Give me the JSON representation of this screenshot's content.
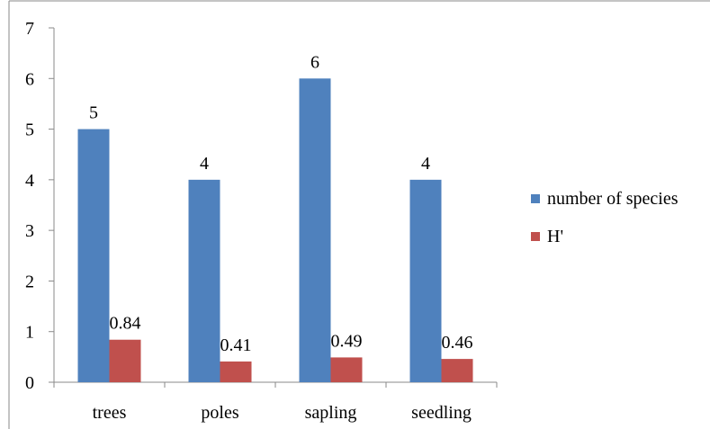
{
  "chart_data": {
    "type": "bar",
    "title": "",
    "xlabel": "",
    "ylabel": "",
    "categories": [
      "trees",
      "poles",
      "sapling",
      "seedling"
    ],
    "series": [
      {
        "name": "number of species",
        "values": [
          5,
          4,
          6,
          4
        ],
        "labels": [
          "5",
          "4",
          "6",
          "4"
        ],
        "color": "#4f81bd"
      },
      {
        "name": "H'",
        "values": [
          0.84,
          0.41,
          0.49,
          0.46
        ],
        "labels": [
          "0.84",
          "0.41",
          "0.49",
          "0.46"
        ],
        "color": "#c0504d"
      }
    ],
    "ylim": [
      0,
      7
    ],
    "yticks": [
      "0",
      "1",
      "2",
      "3",
      "4",
      "5",
      "6",
      "7"
    ],
    "grid": false,
    "legend_position": "right"
  }
}
